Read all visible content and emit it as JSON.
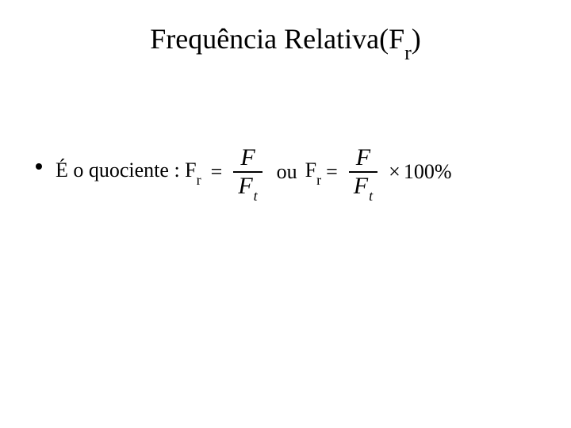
{
  "colors": {
    "background": "#ffffff",
    "text": "#000000"
  },
  "title": {
    "prefix": "Frequência Relativa(F",
    "sub": "r",
    "suffix": ")",
    "fontsize": 36,
    "sub_fontsize": 26
  },
  "formula": {
    "lead_prefix": "É o quociente : F",
    "lead_sub": "r",
    "eq": "=",
    "frac1": {
      "num": "F",
      "den_main": "F",
      "den_sub": "t"
    },
    "mid": "ou",
    "fr2_prefix": "F",
    "fr2_sub": "r",
    "frac2": {
      "num": "F",
      "den_main": "F",
      "den_sub": "t"
    },
    "times": "×",
    "percent": "100%",
    "fontsize": 26,
    "frac_fontsize": 30
  }
}
